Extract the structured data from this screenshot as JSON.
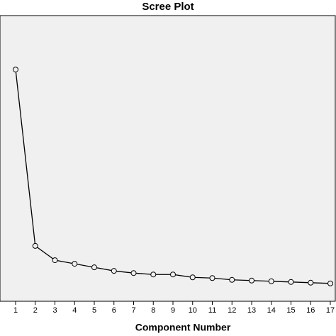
{
  "chart_data": {
    "type": "line",
    "title": "Scree Plot",
    "x_label": "Component Number",
    "categories": [
      "1",
      "2",
      "3",
      "4",
      "5",
      "6",
      "7",
      "8",
      "9",
      "10",
      "11",
      "12",
      "13",
      "14",
      "15",
      "16",
      "17"
    ],
    "values": [
      6.49,
      1.55,
      1.15,
      1.05,
      0.95,
      0.85,
      0.79,
      0.75,
      0.75,
      0.67,
      0.65,
      0.6,
      0.58,
      0.56,
      0.54,
      0.52,
      0.5
    ],
    "ylim": [
      0,
      8
    ],
    "color": "#000000",
    "background": "#f0f0f0"
  }
}
